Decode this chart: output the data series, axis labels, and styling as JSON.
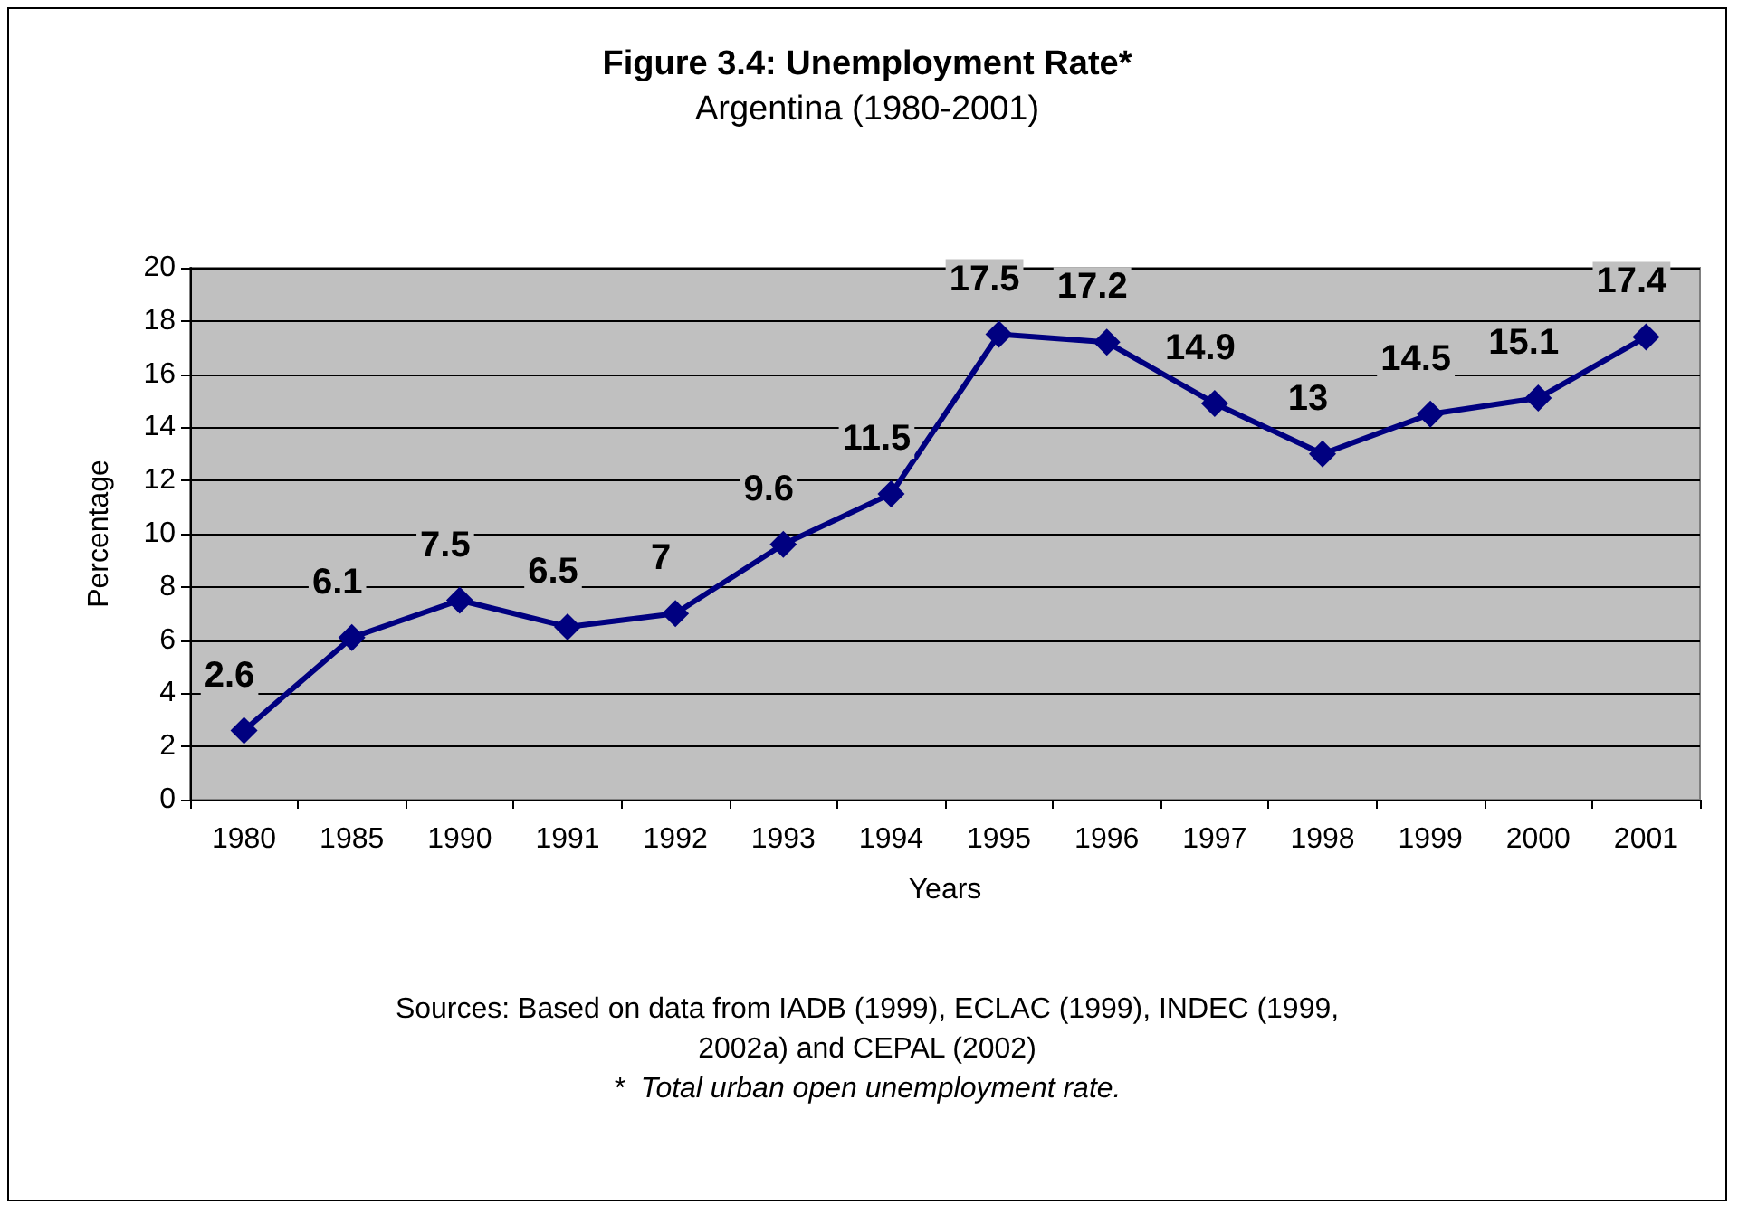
{
  "chart_data": {
    "type": "line",
    "title": "Figure 3.4: Unemployment Rate*",
    "subtitle": "Argentina (1980-2001)",
    "xlabel": "Years",
    "ylabel": "Percentage",
    "categories": [
      "1980",
      "1985",
      "1990",
      "1991",
      "1992",
      "1993",
      "1994",
      "1995",
      "1996",
      "1997",
      "1998",
      "1999",
      "2000",
      "2001"
    ],
    "series": [
      {
        "color": "#000080",
        "values": [
          2.6,
          6.1,
          7.5,
          6.5,
          7,
          9.6,
          11.5,
          17.5,
          17.2,
          14.9,
          13,
          14.5,
          15.1,
          17.4
        ]
      }
    ],
    "ylim": [
      0,
      20
    ],
    "yticks": [
      0,
      2,
      4,
      6,
      8,
      10,
      12,
      14,
      16,
      18,
      20
    ],
    "grid": "y",
    "marker": "diamond",
    "line_style": "solid",
    "data_labels": true,
    "annotations": [
      "Sources: Based on data from IADB (1999), ECLAC (1999), INDEC (1999,\n2002a) and CEPAL (2002)",
      "*  Total urban open unemployment rate."
    ]
  }
}
